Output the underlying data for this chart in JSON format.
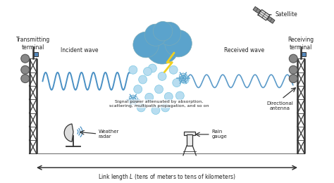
{
  "bg_color": "#ffffff",
  "wave_color": "#4a90c4",
  "tower_color": "#333333",
  "text_color": "#222222",
  "arrow_color": "#333333",
  "cloud_color": "#5ba3cc",
  "snowflake_color": "#5ba3cc",
  "fig_width": 4.74,
  "fig_height": 2.6,
  "dpi": 100,
  "title": "Link length $L$ (tens of meters to tens of kilometers)",
  "labels": {
    "transmitting": "Transmitting\nterminal",
    "receiving": "Receiving\nterminal",
    "incident": "Incident wave",
    "received": "Received wave",
    "signal_power": "Signal power attenuated by absorption,\nscattering, multipath propagation, and so on",
    "directional": "Directional\nantenna",
    "weather_radar": "Weather\nradar",
    "rain_gauge": "Rain\ngauge",
    "satellite": "Satellite"
  }
}
